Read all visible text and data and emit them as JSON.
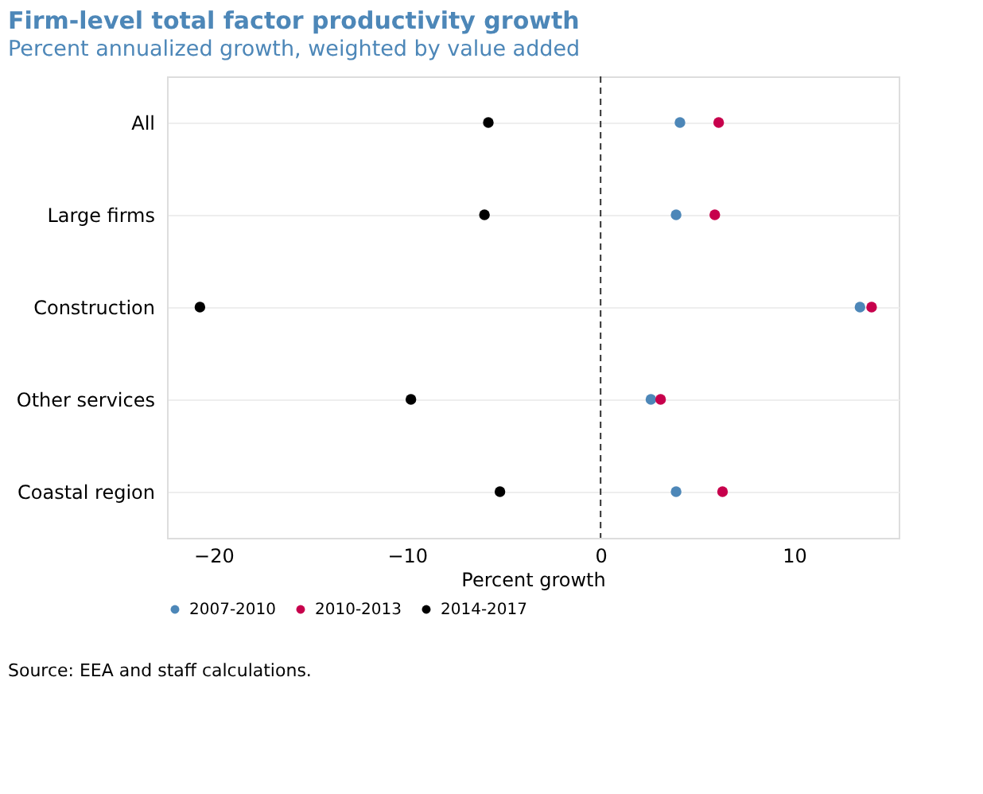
{
  "chart_data": {
    "type": "scatter",
    "orientation": "horizontal",
    "title": "Firm-level total factor productivity growth",
    "subtitle": "Percent annualized growth, weighted by value added",
    "xlabel": "Percent growth",
    "categories": [
      "All",
      "Large firms",
      "Construction",
      "Other services",
      "Coastal region"
    ],
    "series": [
      {
        "name": "2007-2010",
        "color": "#4d87b8",
        "values": [
          4.1,
          3.9,
          13.4,
          2.6,
          3.9
        ]
      },
      {
        "name": "2010-2013",
        "color": "#c7004c",
        "values": [
          6.1,
          5.9,
          14.0,
          3.1,
          6.3
        ]
      },
      {
        "name": "2014-2017",
        "color": "#000000",
        "values": [
          -5.8,
          -6.0,
          -20.7,
          -9.8,
          -5.2
        ]
      }
    ],
    "xlim": [
      -22.4,
      15.4
    ],
    "xticks": [
      -20,
      -10,
      0,
      10
    ],
    "ref_lines": [
      {
        "axis": "x",
        "value": 0,
        "color": "#333333",
        "line_style": "dashed"
      }
    ],
    "grid": "y",
    "legend": "bottom",
    "marker": "circle",
    "annotations": [
      "Source: EEA and staff calculations."
    ]
  }
}
